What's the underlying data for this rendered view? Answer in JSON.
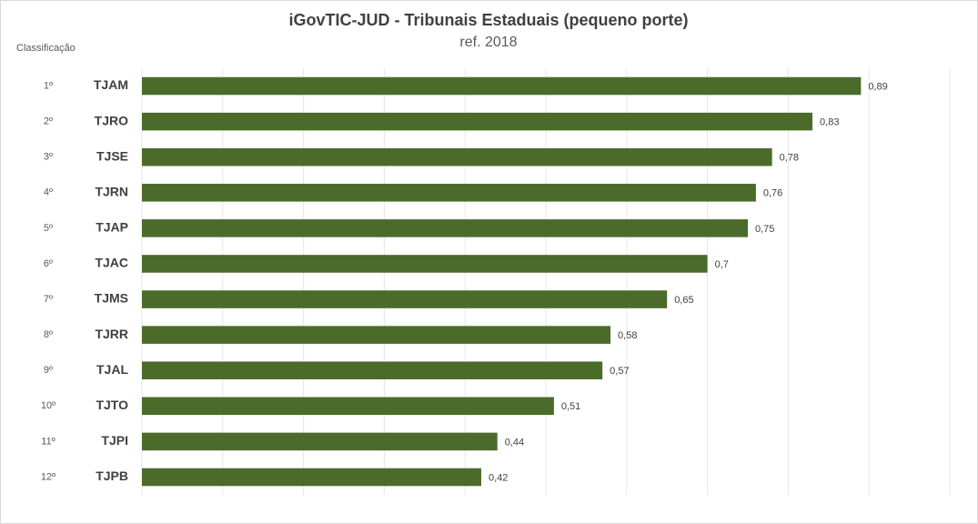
{
  "chart_data": {
    "type": "bar",
    "orientation": "horizontal",
    "title": "iGovTIC-JUD  - Tribunais  Estaduais  (pequeno porte)",
    "subtitle": "ref. 2018",
    "rank_axis_label": "Classificação",
    "ranks": [
      "1º",
      "2º",
      "3º",
      "4º",
      "5º",
      "6º",
      "7º",
      "8º",
      "9º",
      "10º",
      "11º",
      "12º"
    ],
    "categories": [
      "TJAM",
      "TJRO",
      "TJSE",
      "TJRN",
      "TJAP",
      "TJAC",
      "TJMS",
      "TJRR",
      "TJAL",
      "TJTO",
      "TJPI",
      "TJPB"
    ],
    "values": [
      0.89,
      0.83,
      0.78,
      0.76,
      0.75,
      0.7,
      0.65,
      0.58,
      0.57,
      0.51,
      0.44,
      0.42
    ],
    "value_labels": [
      "0,89",
      "0,83",
      "0,78",
      "0,76",
      "0,75",
      "0,7",
      "0,65",
      "0,58",
      "0,57",
      "0,51",
      "0,44",
      "0,42"
    ],
    "color": "#4b6b2a",
    "xlim": [
      0,
      1
    ],
    "xticks": [
      0,
      0.1,
      0.2,
      0.3,
      0.4,
      0.5,
      0.6,
      0.7,
      0.8,
      0.9,
      1
    ],
    "grid": true
  }
}
